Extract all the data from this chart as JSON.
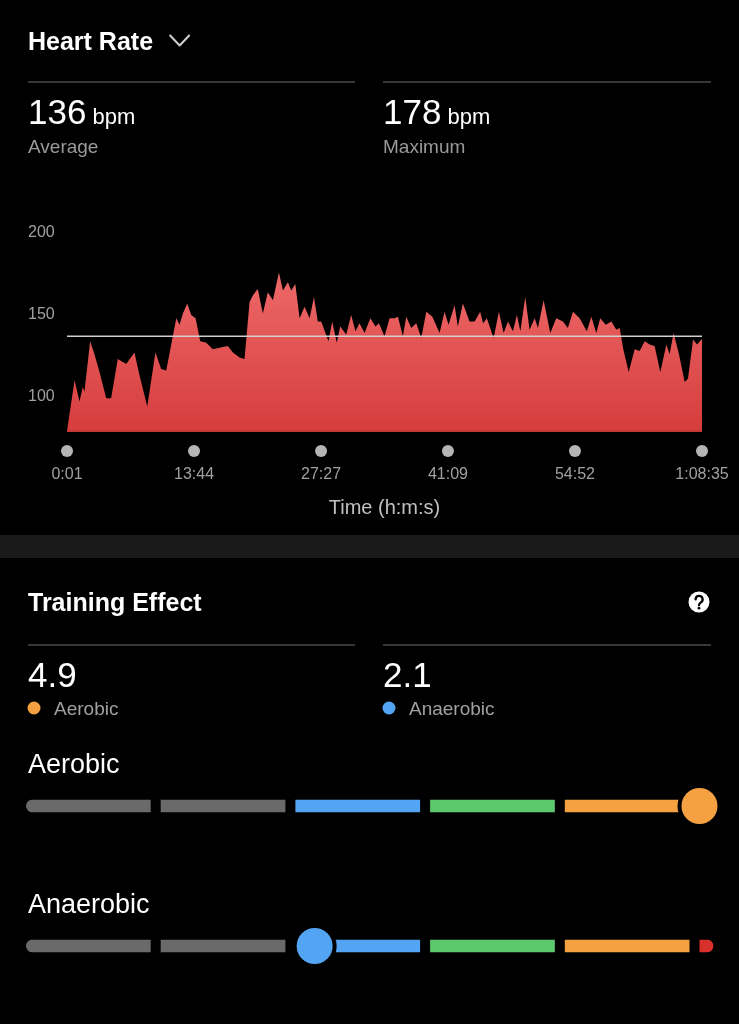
{
  "chart_data": [
    {
      "type": "area",
      "title": "Heart Rate",
      "xlabel": "Time (h:m:s)",
      "annotations": [
        "136 bpm",
        "Average",
        "178 bpm",
        "Maximum"
      ],
      "xlim": [
        1,
        4115
      ],
      "ylim": [
        78,
        200
      ],
      "xticks": [
        {
          "value": 1,
          "label": "0:01"
        },
        {
          "value": 824,
          "label": "13:44"
        },
        {
          "value": 1647,
          "label": "27:27"
        },
        {
          "value": 2469,
          "label": "41:09"
        },
        {
          "value": 3292,
          "label": "54:52"
        },
        {
          "value": 4115,
          "label": "1:08:35"
        }
      ],
      "yticks": [
        100,
        150,
        200
      ],
      "ref_lines": [
        {
          "axis": "y",
          "value": 136,
          "color": "#d0d0d0"
        }
      ],
      "x": [
        1,
        50,
        82,
        103,
        114,
        151,
        179,
        212,
        255,
        287,
        330,
        385,
        438,
        471,
        521,
        574,
        611,
        644,
        709,
        730,
        752,
        780,
        806,
        834,
        864,
        903,
        946,
        989,
        1043,
        1076,
        1119,
        1151,
        1184,
        1205,
        1237,
        1270,
        1302,
        1335,
        1374,
        1400,
        1432,
        1454,
        1480,
        1508,
        1540,
        1573,
        1601,
        1626,
        1648,
        1695,
        1719,
        1749,
        1771,
        1810,
        1842,
        1870,
        1896,
        1929,
        1966,
        2000,
        2022,
        2058,
        2091,
        2123,
        2145,
        2177,
        2199,
        2231,
        2264,
        2296,
        2329,
        2368,
        2415,
        2447,
        2473,
        2512,
        2533,
        2566,
        2609,
        2642,
        2678,
        2697,
        2721,
        2765,
        2799,
        2830,
        2858,
        2890,
        2916,
        2938,
        2970,
        2998,
        3031,
        3052,
        3089,
        3132,
        3171,
        3214,
        3246,
        3279,
        3322,
        3369,
        3398,
        3430,
        3456,
        3491,
        3528,
        3560,
        3582,
        3603,
        3640,
        3679,
        3711,
        3744,
        3776,
        3808,
        3845,
        3884,
        3905,
        3931,
        3966,
        4003,
        4024,
        4057,
        4083,
        4111,
        4115
      ],
      "series": [
        {
          "color": "#ea4343",
          "values": [
            78,
            109,
            96,
            105,
            102,
            133,
            125,
            114,
            98,
            98,
            122,
            119,
            126,
            112,
            93,
            126,
            116,
            115,
            147,
            143,
            150,
            156,
            149,
            147,
            133,
            132,
            128,
            129,
            130,
            126,
            123,
            122,
            157,
            161,
            165,
            150,
            163,
            158,
            175,
            164,
            169,
            164,
            168,
            147,
            154,
            147,
            160,
            145,
            145,
            133,
            145,
            132,
            142,
            137,
            149,
            139,
            144,
            138,
            147,
            142,
            144,
            136,
            147,
            147,
            148,
            136,
            148,
            141,
            144,
            135,
            151,
            148,
            138,
            151,
            143,
            155,
            142,
            156,
            145,
            145,
            151,
            144,
            147,
            135,
            151,
            138,
            145,
            139,
            149,
            139,
            160,
            140,
            147,
            141,
            158,
            138,
            147,
            145,
            141,
            151,
            147,
            139,
            148,
            138,
            147,
            143,
            145,
            140,
            141,
            129,
            114,
            128,
            127,
            133,
            131,
            130,
            114,
            131,
            125,
            138,
            125,
            108,
            110,
            134,
            131,
            134,
            134
          ]
        }
      ]
    },
    {
      "type": "other",
      "title": "Training Effect",
      "categories": [
        "Aerobic",
        "Anaerobic"
      ],
      "values": [
        4.9,
        2.1
      ],
      "colors": [
        "#f5a142",
        "#54a4f4"
      ],
      "data_labels": true
    }
  ]
}
